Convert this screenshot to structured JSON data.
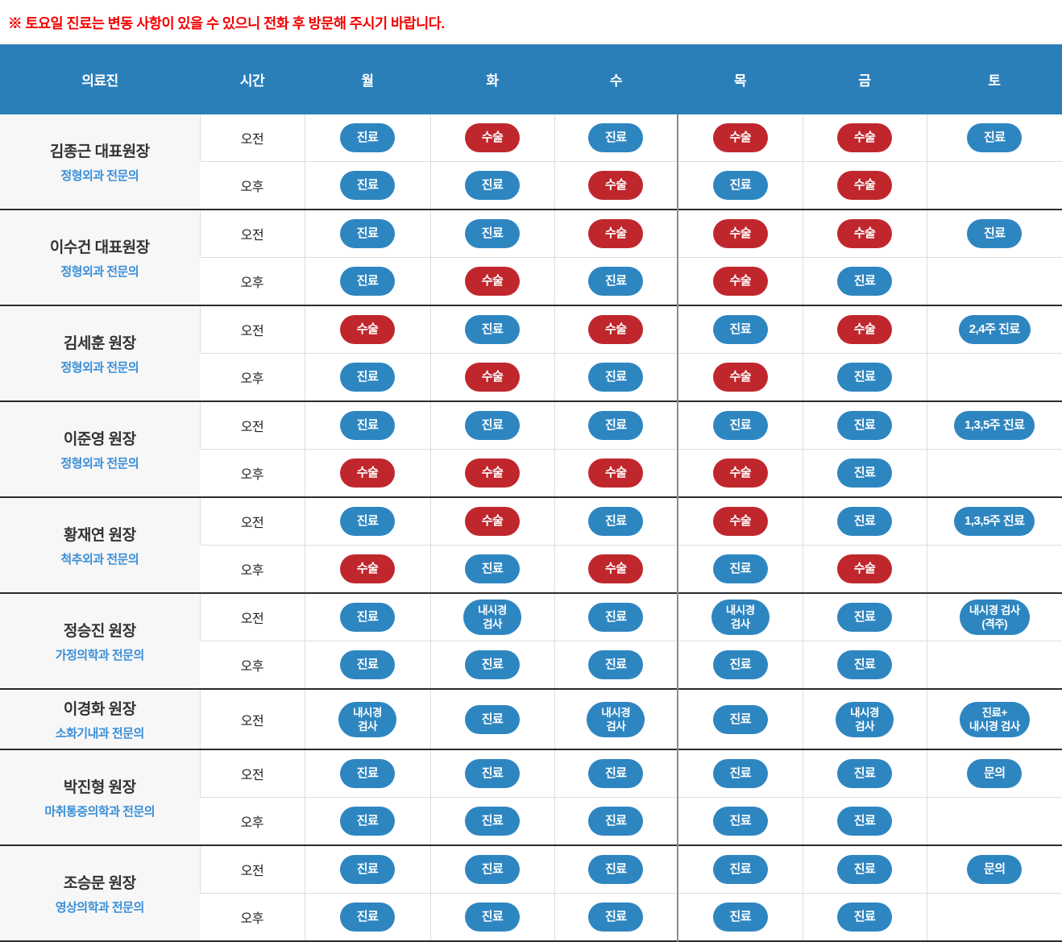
{
  "notice": "※ 토요일 진료는 변동 사항이 있을 수 있으니 전화 후 방문해 주시기 바랍니다.",
  "colors": {
    "header_bg": "#2b7fb9",
    "badge_blue": "#2e86c1",
    "badge_red": "#c0272d",
    "notice_red": "#f30000",
    "specialty_blue": "#3a8ed8",
    "doctor_cell_bg": "#f7f7f7",
    "group_border": "#2b2b2b"
  },
  "table": {
    "headers": [
      "의료진",
      "시간",
      "월",
      "화",
      "수",
      "목",
      "금",
      "토"
    ],
    "groups": [
      {
        "name": "김종근 대표원장",
        "specialty": "정형외과 전문의",
        "rows": [
          {
            "time": "오전",
            "cells": [
              {
                "label": "진료",
                "color": "blue"
              },
              {
                "label": "수술",
                "color": "red"
              },
              {
                "label": "진료",
                "color": "blue"
              },
              {
                "label": "수술",
                "color": "red"
              },
              {
                "label": "수술",
                "color": "red"
              },
              {
                "label": "진료",
                "color": "blue"
              }
            ]
          },
          {
            "time": "오후",
            "cells": [
              {
                "label": "진료",
                "color": "blue"
              },
              {
                "label": "진료",
                "color": "blue"
              },
              {
                "label": "수술",
                "color": "red"
              },
              {
                "label": "진료",
                "color": "blue"
              },
              {
                "label": "수술",
                "color": "red"
              },
              null
            ]
          }
        ]
      },
      {
        "name": "이수건 대표원장",
        "specialty": "정형외과 전문의",
        "rows": [
          {
            "time": "오전",
            "cells": [
              {
                "label": "진료",
                "color": "blue"
              },
              {
                "label": "진료",
                "color": "blue"
              },
              {
                "label": "수술",
                "color": "red"
              },
              {
                "label": "수술",
                "color": "red"
              },
              {
                "label": "수술",
                "color": "red"
              },
              {
                "label": "진료",
                "color": "blue"
              }
            ]
          },
          {
            "time": "오후",
            "cells": [
              {
                "label": "진료",
                "color": "blue"
              },
              {
                "label": "수술",
                "color": "red"
              },
              {
                "label": "진료",
                "color": "blue"
              },
              {
                "label": "수술",
                "color": "red"
              },
              {
                "label": "진료",
                "color": "blue"
              },
              null
            ]
          }
        ]
      },
      {
        "name": "김세훈 원장",
        "specialty": "정형외과 전문의",
        "rows": [
          {
            "time": "오전",
            "cells": [
              {
                "label": "수술",
                "color": "red"
              },
              {
                "label": "진료",
                "color": "blue"
              },
              {
                "label": "수술",
                "color": "red"
              },
              {
                "label": "진료",
                "color": "blue"
              },
              {
                "label": "수술",
                "color": "red"
              },
              {
                "label": "2,4주 진료",
                "color": "blue",
                "wide": true
              }
            ]
          },
          {
            "time": "오후",
            "cells": [
              {
                "label": "진료",
                "color": "blue"
              },
              {
                "label": "수술",
                "color": "red"
              },
              {
                "label": "진료",
                "color": "blue"
              },
              {
                "label": "수술",
                "color": "red"
              },
              {
                "label": "진료",
                "color": "blue"
              },
              null
            ]
          }
        ]
      },
      {
        "name": "이준영 원장",
        "specialty": "정형외과 전문의",
        "rows": [
          {
            "time": "오전",
            "cells": [
              {
                "label": "진료",
                "color": "blue"
              },
              {
                "label": "진료",
                "color": "blue"
              },
              {
                "label": "진료",
                "color": "blue"
              },
              {
                "label": "진료",
                "color": "blue"
              },
              {
                "label": "진료",
                "color": "blue"
              },
              {
                "label": "1,3,5주 진료",
                "color": "blue",
                "wide": true
              }
            ]
          },
          {
            "time": "오후",
            "cells": [
              {
                "label": "수술",
                "color": "red"
              },
              {
                "label": "수술",
                "color": "red"
              },
              {
                "label": "수술",
                "color": "red"
              },
              {
                "label": "수술",
                "color": "red"
              },
              {
                "label": "진료",
                "color": "blue"
              },
              null
            ]
          }
        ]
      },
      {
        "name": "황재연 원장",
        "specialty": "척추외과 전문의",
        "rows": [
          {
            "time": "오전",
            "cells": [
              {
                "label": "진료",
                "color": "blue"
              },
              {
                "label": "수술",
                "color": "red"
              },
              {
                "label": "진료",
                "color": "blue"
              },
              {
                "label": "수술",
                "color": "red"
              },
              {
                "label": "진료",
                "color": "blue"
              },
              {
                "label": "1,3,5주 진료",
                "color": "blue",
                "wide": true
              }
            ]
          },
          {
            "time": "오후",
            "cells": [
              {
                "label": "수술",
                "color": "red"
              },
              {
                "label": "진료",
                "color": "blue"
              },
              {
                "label": "수술",
                "color": "red"
              },
              {
                "label": "진료",
                "color": "blue"
              },
              {
                "label": "수술",
                "color": "red"
              },
              null
            ]
          }
        ]
      },
      {
        "name": "정승진 원장",
        "specialty": "가정의학과 전문의",
        "rows": [
          {
            "time": "오전",
            "cells": [
              {
                "label": "진료",
                "color": "blue"
              },
              {
                "label": "내시경\n검사",
                "color": "blue",
                "multiline": true
              },
              {
                "label": "진료",
                "color": "blue"
              },
              {
                "label": "내시경\n검사",
                "color": "blue",
                "multiline": true
              },
              {
                "label": "진료",
                "color": "blue"
              },
              {
                "label": "내시경 검사\n(격주)",
                "color": "blue",
                "multiline": true,
                "wide": true
              }
            ]
          },
          {
            "time": "오후",
            "cells": [
              {
                "label": "진료",
                "color": "blue"
              },
              {
                "label": "진료",
                "color": "blue"
              },
              {
                "label": "진료",
                "color": "blue"
              },
              {
                "label": "진료",
                "color": "blue"
              },
              {
                "label": "진료",
                "color": "blue"
              },
              null
            ]
          }
        ]
      },
      {
        "name": "이경화 원장",
        "specialty": "소화기내과 전문의",
        "rows": [
          {
            "time": "오전",
            "cells": [
              {
                "label": "내시경\n검사",
                "color": "blue",
                "multiline": true
              },
              {
                "label": "진료",
                "color": "blue"
              },
              {
                "label": "내시경\n검사",
                "color": "blue",
                "multiline": true
              },
              {
                "label": "진료",
                "color": "blue"
              },
              {
                "label": "내시경\n검사",
                "color": "blue",
                "multiline": true
              },
              {
                "label": "진료+\n내시경 검사",
                "color": "blue",
                "multiline": true,
                "wide": true
              }
            ]
          }
        ]
      },
      {
        "name": "박진형 원장",
        "specialty": "마취통증의학과 전문의",
        "rows": [
          {
            "time": "오전",
            "cells": [
              {
                "label": "진료",
                "color": "blue"
              },
              {
                "label": "진료",
                "color": "blue"
              },
              {
                "label": "진료",
                "color": "blue"
              },
              {
                "label": "진료",
                "color": "blue"
              },
              {
                "label": "진료",
                "color": "blue"
              },
              {
                "label": "문의",
                "color": "blue"
              }
            ]
          },
          {
            "time": "오후",
            "cells": [
              {
                "label": "진료",
                "color": "blue"
              },
              {
                "label": "진료",
                "color": "blue"
              },
              {
                "label": "진료",
                "color": "blue"
              },
              {
                "label": "진료",
                "color": "blue"
              },
              {
                "label": "진료",
                "color": "blue"
              },
              null
            ]
          }
        ]
      },
      {
        "name": "조승문 원장",
        "specialty": "영상의학과 전문의",
        "rows": [
          {
            "time": "오전",
            "cells": [
              {
                "label": "진료",
                "color": "blue"
              },
              {
                "label": "진료",
                "color": "blue"
              },
              {
                "label": "진료",
                "color": "blue"
              },
              {
                "label": "진료",
                "color": "blue"
              },
              {
                "label": "진료",
                "color": "blue"
              },
              {
                "label": "문의",
                "color": "blue"
              }
            ]
          },
          {
            "time": "오후",
            "cells": [
              {
                "label": "진료",
                "color": "blue"
              },
              {
                "label": "진료",
                "color": "blue"
              },
              {
                "label": "진료",
                "color": "blue"
              },
              {
                "label": "진료",
                "color": "blue"
              },
              {
                "label": "진료",
                "color": "blue"
              },
              null
            ]
          }
        ]
      }
    ]
  }
}
